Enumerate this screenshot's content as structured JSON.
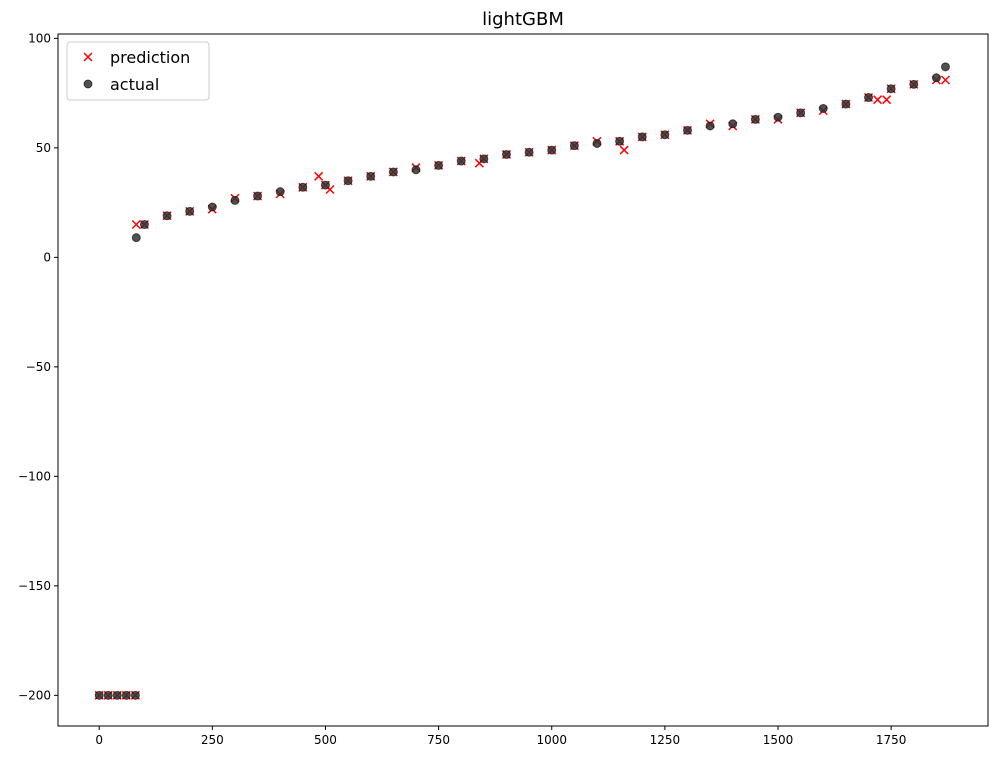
{
  "chart_data": {
    "type": "scatter",
    "title": "lightGBM",
    "xlim": [
      -91,
      1964
    ],
    "ylim": [
      -214,
      102
    ],
    "xticks": [
      0,
      250,
      500,
      750,
      1000,
      1250,
      1500,
      1750
    ],
    "yticks": [
      {
        "value": -200,
        "label": "−200"
      },
      {
        "value": -150,
        "label": "−150"
      },
      {
        "value": -100,
        "label": "−100"
      },
      {
        "value": -50,
        "label": "−50"
      },
      0,
      50,
      100
    ],
    "legend": "upper left",
    "series": [
      {
        "name": "prediction",
        "color": "#ff0000",
        "marker": "x",
        "x": [
          0,
          20,
          40,
          60,
          80,
          82,
          100,
          150,
          200,
          250,
          300,
          350,
          400,
          450,
          485,
          500,
          510,
          550,
          600,
          650,
          700,
          750,
          800,
          840,
          850,
          900,
          950,
          1000,
          1050,
          1100,
          1150,
          1160,
          1200,
          1250,
          1300,
          1350,
          1400,
          1450,
          1500,
          1550,
          1600,
          1650,
          1700,
          1720,
          1740,
          1750,
          1800,
          1850,
          1870
        ],
        "values": [
          -200,
          -200,
          -200,
          -200,
          -200,
          15,
          15,
          19,
          21,
          22,
          27,
          28,
          29,
          32,
          37,
          33,
          31,
          35,
          37,
          39,
          41,
          42,
          44,
          43,
          45,
          47,
          48,
          49,
          51,
          53,
          53,
          49,
          55,
          56,
          58,
          61,
          60,
          63,
          63,
          66,
          67,
          70,
          73,
          72,
          72,
          77,
          79,
          81,
          81
        ]
      },
      {
        "name": "actual",
        "color": "#333333",
        "marker": "o",
        "x": [
          0,
          20,
          40,
          60,
          80,
          82,
          100,
          150,
          200,
          250,
          300,
          350,
          400,
          450,
          500,
          550,
          600,
          650,
          700,
          750,
          800,
          850,
          900,
          950,
          1000,
          1050,
          1100,
          1150,
          1200,
          1250,
          1300,
          1350,
          1400,
          1450,
          1500,
          1550,
          1600,
          1650,
          1700,
          1750,
          1800,
          1850,
          1870
        ],
        "values": [
          -200,
          -200,
          -200,
          -200,
          -200,
          9,
          15,
          19,
          21,
          23,
          26,
          28,
          30,
          32,
          33,
          35,
          37,
          39,
          40,
          42,
          44,
          45,
          47,
          48,
          49,
          51,
          52,
          53,
          55,
          56,
          58,
          60,
          61,
          63,
          64,
          66,
          68,
          70,
          73,
          77,
          79,
          82,
          87
        ]
      }
    ]
  }
}
